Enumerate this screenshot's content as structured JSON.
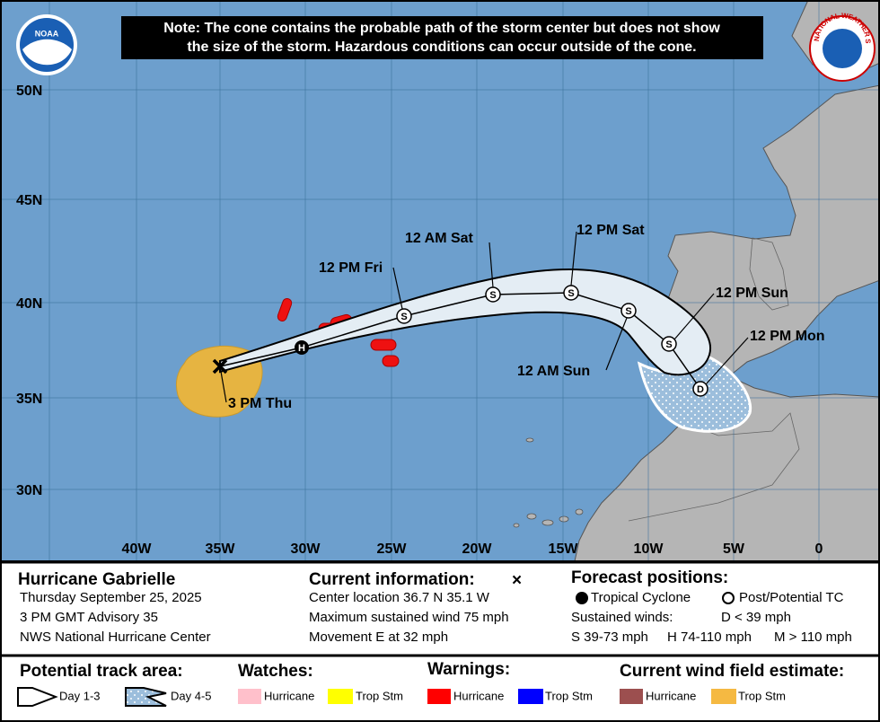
{
  "note": [
    "Note: The cone contains the probable path of the storm center but does not show",
    "the size of the storm. Hazardous conditions can occur outside of the cone."
  ],
  "logos": {
    "noaa": "NOAA",
    "nws": "NATIONAL WEATHER SERVICE"
  },
  "map": {
    "lat_labels": [
      "50N",
      "45N",
      "40N",
      "35N",
      "30N"
    ],
    "lon_labels": [
      "40W",
      "35W",
      "30W",
      "25W",
      "20W",
      "15W",
      "10W",
      "5W",
      "0"
    ],
    "forecast_labels": [
      "3 PM Thu",
      "12 PM Fri",
      "12 AM Sat",
      "12 PM Sat",
      "12 AM Sun",
      "12 PM Sun",
      "12 PM Mon"
    ],
    "markers": [
      "H",
      "S",
      "S",
      "S",
      "S",
      "S",
      "D"
    ]
  },
  "info": {
    "storm": {
      "name": "Hurricane Gabrielle",
      "date": "Thursday September 25, 2025",
      "advisory": "3 PM GMT Advisory 35",
      "center": "NWS National Hurricane Center"
    },
    "current": {
      "title": "Current information:",
      "symbol": "×",
      "lines": [
        "Center location 36.7 N 35.1 W",
        "Maximum sustained wind 75 mph",
        "Movement E at 32 mph"
      ]
    },
    "forecast": {
      "title": "Forecast positions:",
      "tropical_cyclone": "Tropical Cyclone",
      "post_tc": "Post/Potential TC",
      "winds_label": "Sustained winds:",
      "d": "D < 39 mph",
      "s": "S 39-73 mph",
      "h": "H 74-110 mph",
      "m": "M > 110 mph"
    }
  },
  "legend": {
    "track": {
      "title": "Potential track area:",
      "day13": "Day 1-3",
      "day45": "Day 4-5"
    },
    "watches": {
      "title": "Watches:",
      "hurricane": "Hurricane",
      "trop_stm": "Trop Stm"
    },
    "warnings": {
      "title": "Warnings:",
      "hurricane": "Hurricane",
      "trop_stm": "Trop Stm"
    },
    "wind_field": {
      "title": "Current wind field estimate:",
      "hurricane": "Hurricane",
      "trop_stm": "Trop Stm"
    }
  }
}
